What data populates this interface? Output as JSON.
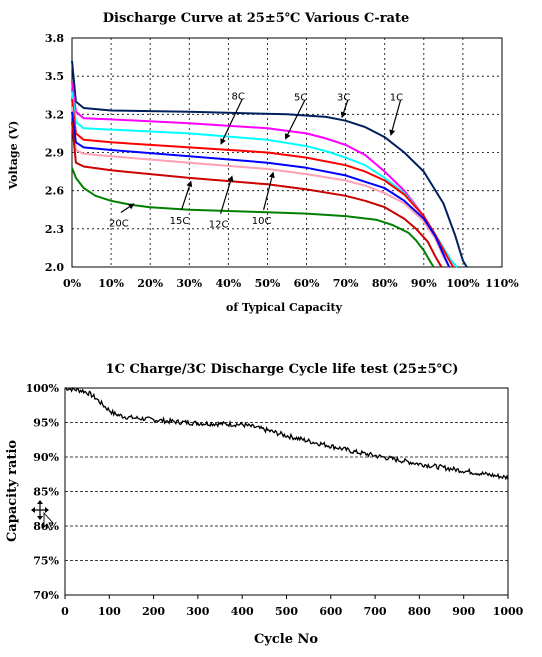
{
  "colors": {
    "1C": "#00205e",
    "3C": "#ff00ff",
    "5C": "#00ffff",
    "8C": "#ff0000",
    "10C": "#ffa0b4",
    "12C": "#0000ff",
    "15C": "#cc0000",
    "20C": "#008000",
    "cycle": "#000000"
  },
  "chart_data": [
    {
      "type": "line",
      "title": "Discharge Curve at 25±5℃ Various C-rate",
      "xlabel": "of Typical Capacity",
      "ylabel": "Voltage (V)",
      "xlim": [
        0,
        110
      ],
      "ylim": [
        2.0,
        3.8
      ],
      "x_unit": "%",
      "x_ticks": [
        "0%",
        "10%",
        "20%",
        "30%",
        "40%",
        "50%",
        "60%",
        "70%",
        "80%",
        "90%",
        "100%",
        "110%"
      ],
      "y_ticks": [
        "2.0",
        "2.3",
        "2.6",
        "2.9",
        "3.2",
        "3.5",
        "3.8"
      ],
      "grid": true,
      "series": [
        {
          "name": "1C",
          "x": [
            0,
            1,
            3,
            10,
            30,
            55,
            65,
            70,
            75,
            80,
            85,
            90,
            95,
            98,
            100,
            101
          ],
          "y": [
            3.62,
            3.3,
            3.25,
            3.23,
            3.22,
            3.2,
            3.18,
            3.15,
            3.1,
            3.02,
            2.9,
            2.75,
            2.5,
            2.25,
            2.05,
            2.0
          ]
        },
        {
          "name": "3C",
          "x": [
            0,
            1,
            3,
            10,
            30,
            50,
            60,
            65,
            70,
            75,
            80,
            85,
            90,
            94,
            97,
            98.5
          ],
          "y": [
            3.45,
            3.22,
            3.17,
            3.16,
            3.13,
            3.09,
            3.05,
            3.01,
            2.96,
            2.88,
            2.75,
            2.6,
            2.4,
            2.2,
            2.05,
            2.0
          ]
        },
        {
          "name": "5C",
          "x": [
            0,
            1,
            3,
            10,
            30,
            50,
            60,
            65,
            70,
            75,
            80,
            85,
            90,
            94,
            97,
            98.5
          ],
          "y": [
            3.38,
            3.14,
            3.09,
            3.08,
            3.05,
            3.0,
            2.95,
            2.91,
            2.86,
            2.8,
            2.7,
            2.58,
            2.4,
            2.2,
            2.05,
            2.0
          ]
        },
        {
          "name": "8C",
          "x": [
            0,
            1,
            3,
            10,
            30,
            50,
            60,
            70,
            75,
            80,
            85,
            90,
            93,
            96,
            97.5
          ],
          "y": [
            3.32,
            3.05,
            3.0,
            2.98,
            2.94,
            2.9,
            2.86,
            2.8,
            2.75,
            2.68,
            2.57,
            2.4,
            2.25,
            2.08,
            2.0
          ]
        },
        {
          "name": "10C",
          "x": [
            0,
            1,
            3,
            10,
            30,
            50,
            60,
            70,
            75,
            80,
            85,
            90,
            93,
            95,
            96.5
          ],
          "y": [
            3.26,
            2.92,
            2.89,
            2.87,
            2.82,
            2.77,
            2.73,
            2.68,
            2.64,
            2.58,
            2.5,
            2.36,
            2.22,
            2.08,
            2.0
          ]
        },
        {
          "name": "12C",
          "x": [
            0,
            1,
            3,
            10,
            30,
            50,
            60,
            70,
            75,
            80,
            85,
            90,
            93,
            95,
            96.5
          ],
          "y": [
            3.22,
            2.98,
            2.94,
            2.92,
            2.87,
            2.82,
            2.78,
            2.72,
            2.67,
            2.62,
            2.52,
            2.38,
            2.24,
            2.1,
            2.0
          ]
        },
        {
          "name": "15C",
          "x": [
            0,
            1,
            3,
            10,
            30,
            50,
            60,
            70,
            75,
            80,
            85,
            88,
            91,
            93,
            94.5
          ],
          "y": [
            3.14,
            2.82,
            2.79,
            2.76,
            2.7,
            2.65,
            2.61,
            2.56,
            2.52,
            2.47,
            2.38,
            2.3,
            2.2,
            2.08,
            2.0
          ]
        },
        {
          "name": "20C",
          "x": [
            0,
            1,
            3,
            6,
            10,
            15,
            20,
            30,
            40,
            50,
            60,
            70,
            78,
            82,
            86,
            88,
            90,
            91.5,
            92.5
          ],
          "y": [
            2.78,
            2.7,
            2.62,
            2.56,
            2.52,
            2.49,
            2.47,
            2.45,
            2.44,
            2.43,
            2.42,
            2.4,
            2.37,
            2.33,
            2.27,
            2.21,
            2.13,
            2.05,
            2.0
          ]
        }
      ],
      "annotations": [
        {
          "text": "1C",
          "tx": 83,
          "ty": 3.34,
          "ax": 81.5,
          "ay": 3.03
        },
        {
          "text": "3C",
          "tx": 69.5,
          "ty": 3.34,
          "ax": 69,
          "ay": 3.17
        },
        {
          "text": "5C",
          "tx": 58.5,
          "ty": 3.34,
          "ax": 54.5,
          "ay": 3.0
        },
        {
          "text": "8C",
          "tx": 42.5,
          "ty": 3.35,
          "ax": 38,
          "ay": 2.96
        },
        {
          "text": "10C",
          "tx": 48.5,
          "ty": 2.37,
          "ax": 51.5,
          "ay": 2.75
        },
        {
          "text": "12C",
          "tx": 37.5,
          "ty": 2.34,
          "ax": 41,
          "ay": 2.72
        },
        {
          "text": "15C",
          "tx": 27.5,
          "ty": 2.37,
          "ax": 30.5,
          "ay": 2.68
        },
        {
          "text": "20C",
          "tx": 12,
          "ty": 2.35,
          "ax": 16,
          "ay": 2.5
        }
      ]
    },
    {
      "type": "line",
      "title": "1C Charge/3C Discharge Cycle life test (25±5℃)",
      "xlabel": "Cycle No",
      "ylabel": "Capacity ratio",
      "xlim": [
        0,
        1000
      ],
      "ylim": [
        70,
        100
      ],
      "y_unit": "%",
      "x_ticks": [
        "0",
        "100",
        "200",
        "300",
        "400",
        "500",
        "600",
        "700",
        "800",
        "900",
        "1000"
      ],
      "y_ticks": [
        "70%",
        "75%",
        "80%",
        "85%",
        "90%",
        "95%",
        "100%"
      ],
      "grid": true,
      "series": [
        {
          "name": "",
          "x": [
            0,
            20,
            40,
            55,
            70,
            90,
            110,
            130,
            150,
            200,
            250,
            300,
            350,
            400,
            430,
            460,
            500,
            550,
            600,
            650,
            700,
            750,
            800,
            850,
            900,
            950,
            1000
          ],
          "y": [
            100,
            99.8,
            99.6,
            99.2,
            98.5,
            97.3,
            96.3,
            95.9,
            95.7,
            95.4,
            95.1,
            94.9,
            94.8,
            94.7,
            94.3,
            93.8,
            93.1,
            92.3,
            91.6,
            90.8,
            90.2,
            89.6,
            89.0,
            88.5,
            88.0,
            87.5,
            87.0
          ]
        }
      ]
    }
  ]
}
